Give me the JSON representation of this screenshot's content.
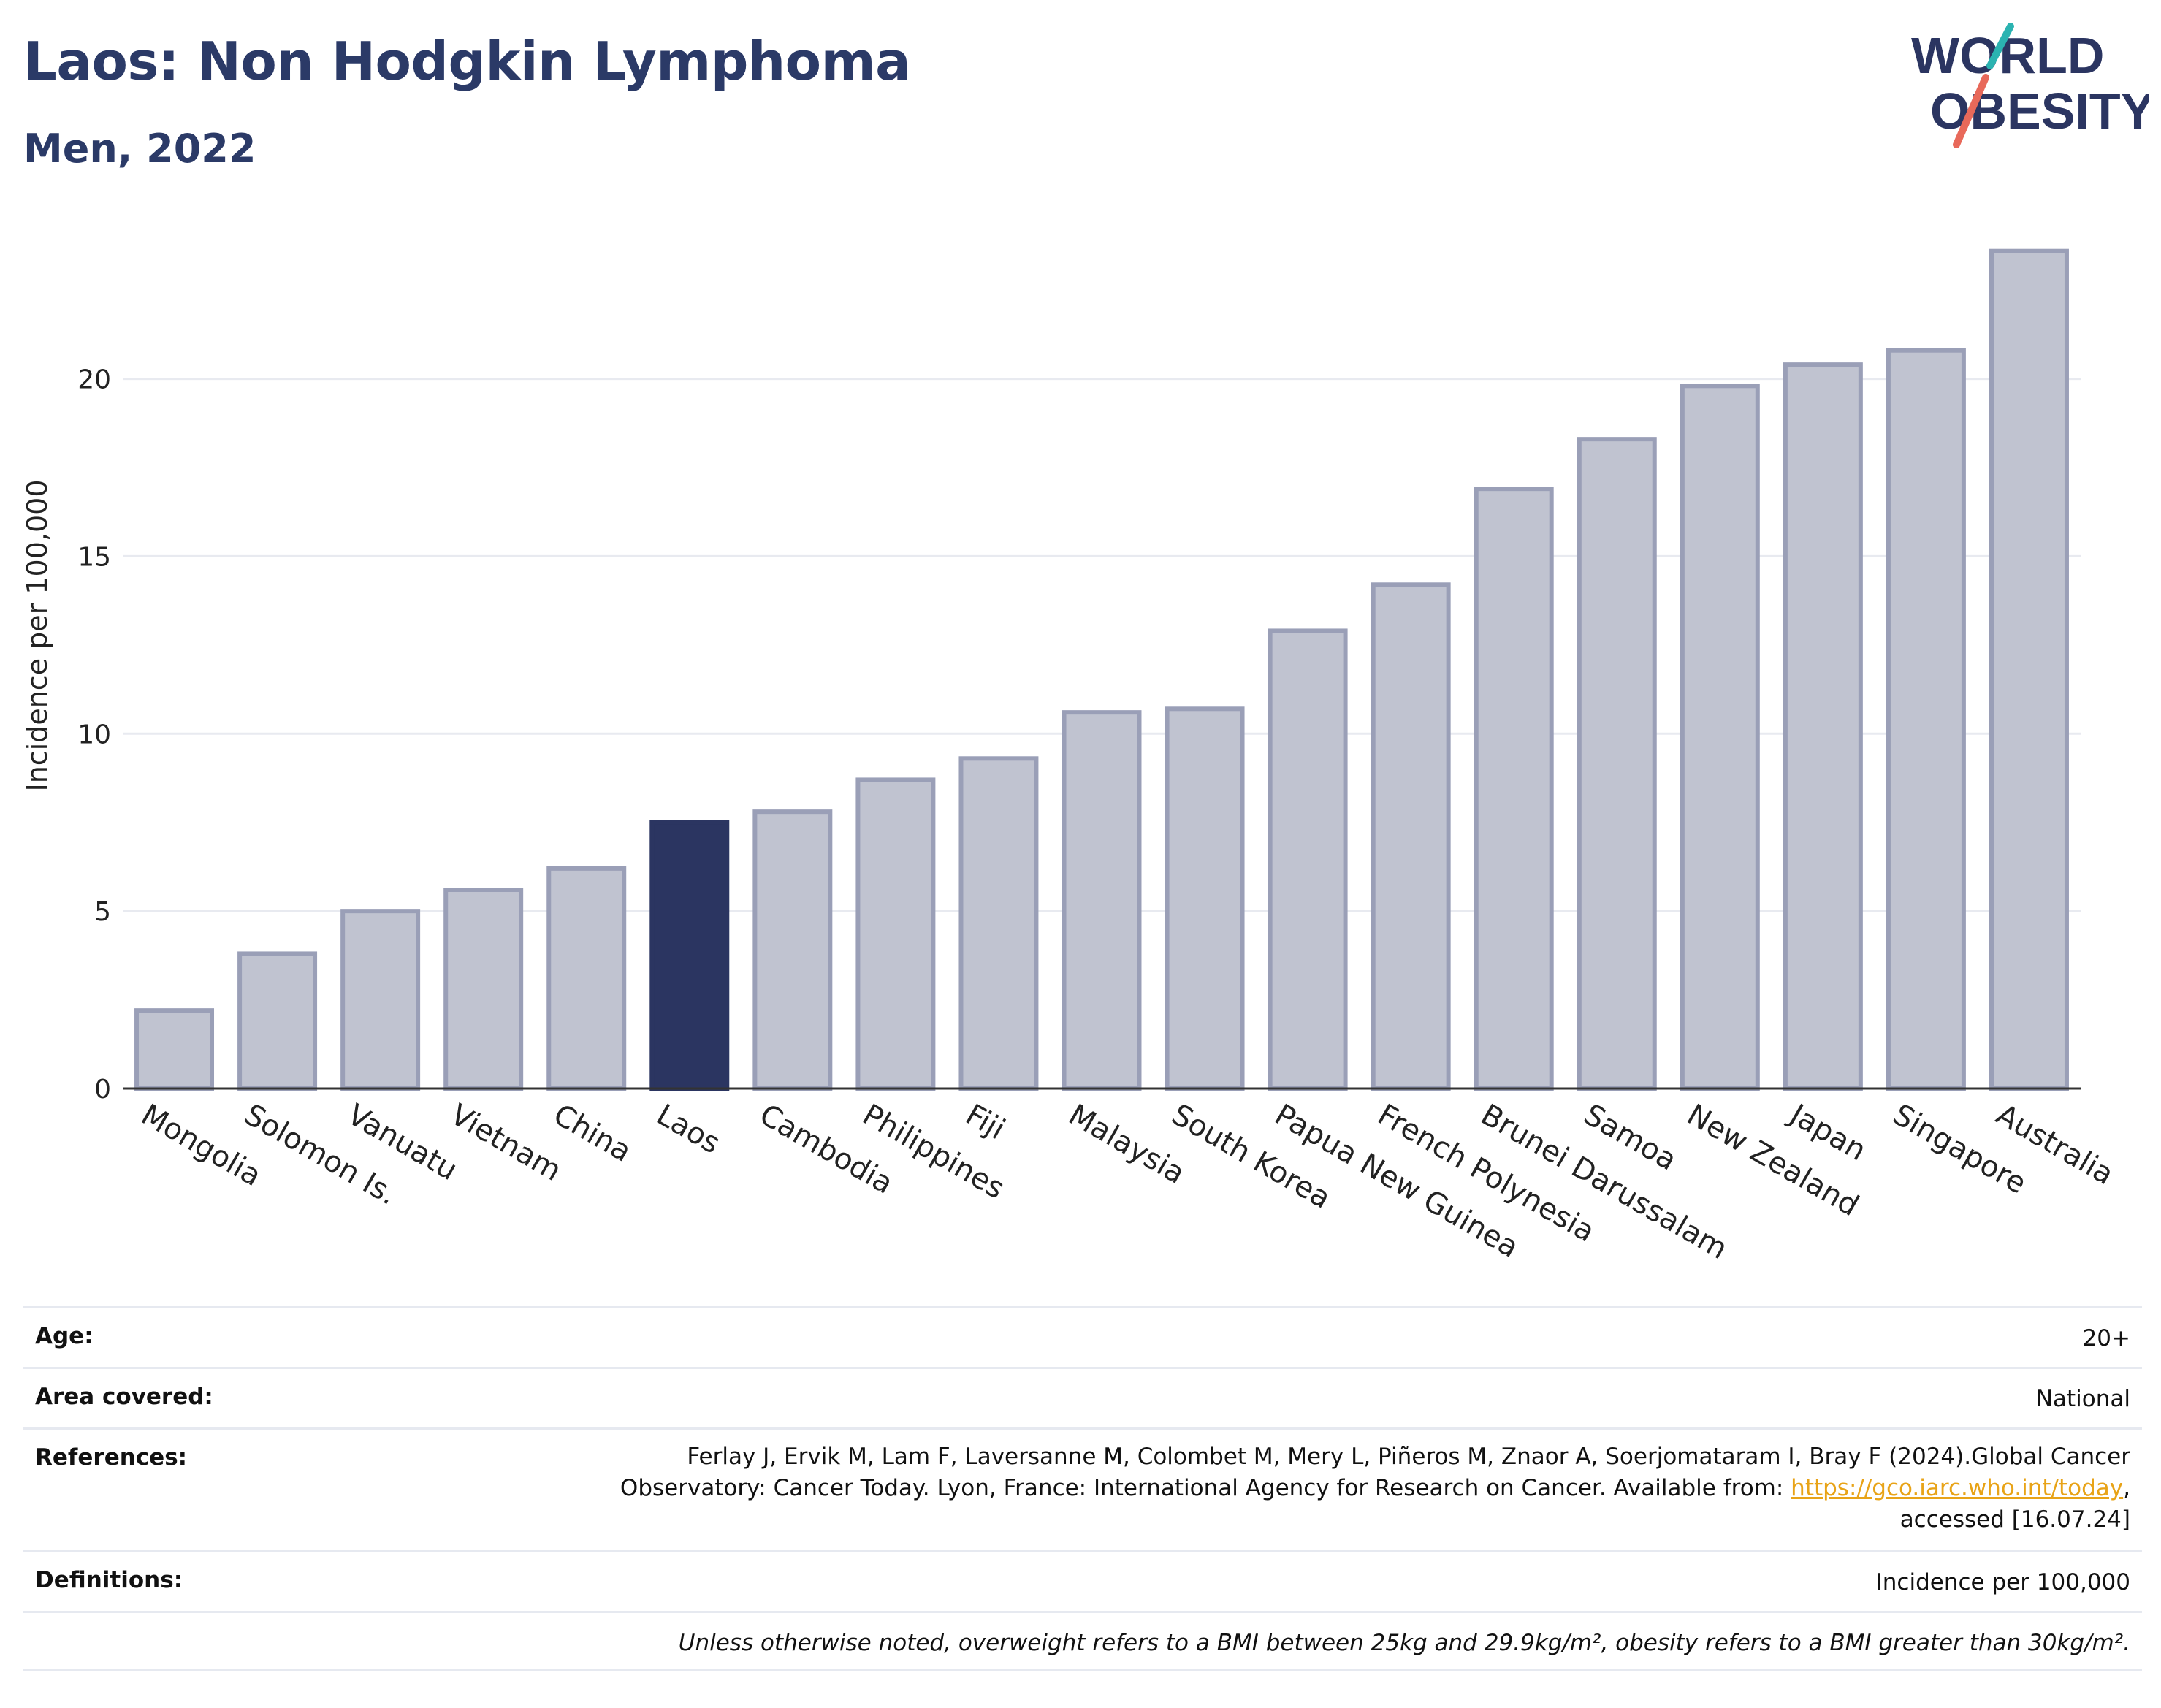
{
  "header": {
    "title": "Laos: Non Hodgkin Lymphoma",
    "subtitle": "Men, 2022"
  },
  "logo": {
    "line1": "WORLD",
    "line2": "OBESITY",
    "name": "world-obesity-logo"
  },
  "colors": {
    "highlight": "#2b3561",
    "bar": "#c0c3d0",
    "bar_border": "#9a9fb7",
    "title": "#2b3a67"
  },
  "chart_data": {
    "type": "bar",
    "ylabel": "Incidence per 100,000",
    "ylim": [
      0,
      24.5
    ],
    "yticks": [
      0,
      5,
      10,
      15,
      20
    ],
    "grid": true,
    "highlight": "Laos",
    "categories": [
      "Mongolia",
      "Solomon Is.",
      "Vanuatu",
      "Vietnam",
      "China",
      "Laos",
      "Cambodia",
      "Philippines",
      "Fiji",
      "Malaysia",
      "South Korea",
      "Papua New Guinea",
      "French Polynesia",
      "Brunei Darussalam",
      "Samoa",
      "New Zealand",
      "Japan",
      "Singapore",
      "Australia"
    ],
    "values": [
      2.2,
      3.8,
      5.0,
      5.6,
      6.2,
      7.5,
      7.8,
      8.7,
      9.3,
      10.6,
      10.7,
      12.9,
      14.2,
      16.9,
      18.3,
      19.8,
      20.4,
      20.8,
      23.6
    ]
  },
  "table": {
    "age": {
      "label": "Age:",
      "value": "20+"
    },
    "area": {
      "label": "Area covered:",
      "value": "National"
    },
    "references": {
      "label": "References:",
      "line1": "Ferlay J, Ervik M, Lam F, Laversanne M, Colombet M, Mery L, Piñeros M, Znaor A, Soerjomataram I, Bray F (2024).Global Cancer",
      "line2_pre": "Observatory: Cancer Today. Lyon, France: International Agency for Research on Cancer. Available from: ",
      "link": "https://gco.iarc.who.int/today",
      "line2_post": ",",
      "line3": "accessed [16.07.24]"
    },
    "definitions": {
      "label": "Definitions:",
      "value": "Incidence per 100,000"
    },
    "note": "Unless otherwise noted, overweight refers to a BMI between 25kg and 29.9kg/m², obesity refers to a BMI greater than 30kg/m²."
  }
}
